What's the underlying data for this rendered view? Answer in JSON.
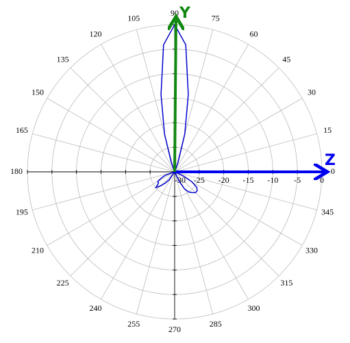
{
  "chart_data": {
    "type": "polar",
    "x": [
      0,
      5,
      10,
      15,
      20,
      25,
      30,
      35,
      40,
      45,
      50,
      55,
      60,
      65,
      70,
      75,
      80,
      85,
      90,
      95,
      100,
      105,
      110,
      115,
      120,
      125,
      130,
      135,
      140,
      145,
      150,
      155,
      160,
      165,
      170,
      175,
      180,
      185,
      190,
      195,
      200,
      205,
      210,
      215,
      220,
      225,
      230,
      235,
      240,
      245,
      250,
      255,
      260,
      265,
      270,
      275,
      280,
      285,
      290,
      295,
      300,
      305,
      310,
      315,
      320,
      325,
      330,
      335,
      340,
      345,
      350,
      355
    ],
    "values": [
      -30,
      -30,
      -30,
      -30,
      -30,
      -30,
      -30,
      -30,
      -30,
      -30,
      -30,
      -30,
      -30,
      -30,
      -28,
      -22,
      -14,
      -4,
      0,
      -4,
      -14,
      -22,
      -28,
      -30,
      -30,
      -30,
      -30,
      -30,
      -30,
      -30,
      -30,
      -30,
      -30,
      -30,
      -30,
      -30,
      -30,
      -30,
      -30,
      -30,
      -28,
      -27,
      -26,
      -26,
      -25,
      -26,
      -27,
      -28,
      -30,
      -30,
      -30,
      -30,
      -30,
      -30,
      -30,
      -30,
      -30,
      -30,
      -30,
      -28,
      -26,
      -25,
      -24.5,
      -24,
      -24,
      -24.5,
      -26,
      -28,
      -30,
      -30,
      -30,
      -30
    ],
    "color": "#0000cc",
    "rlim": [
      -30,
      0
    ],
    "rticks": [
      -30,
      -25,
      -20,
      -15,
      -10,
      -5,
      0
    ],
    "thetaticks": [
      0,
      15,
      30,
      45,
      60,
      75,
      90,
      105,
      120,
      135,
      150,
      165,
      180,
      195,
      210,
      225,
      240,
      255,
      270,
      285,
      300,
      315,
      330,
      345
    ],
    "annotations": [
      {
        "text": "Z",
        "color": "#0000ee"
      },
      {
        "text": "Y",
        "color": "#118811"
      }
    ],
    "grid": true
  }
}
